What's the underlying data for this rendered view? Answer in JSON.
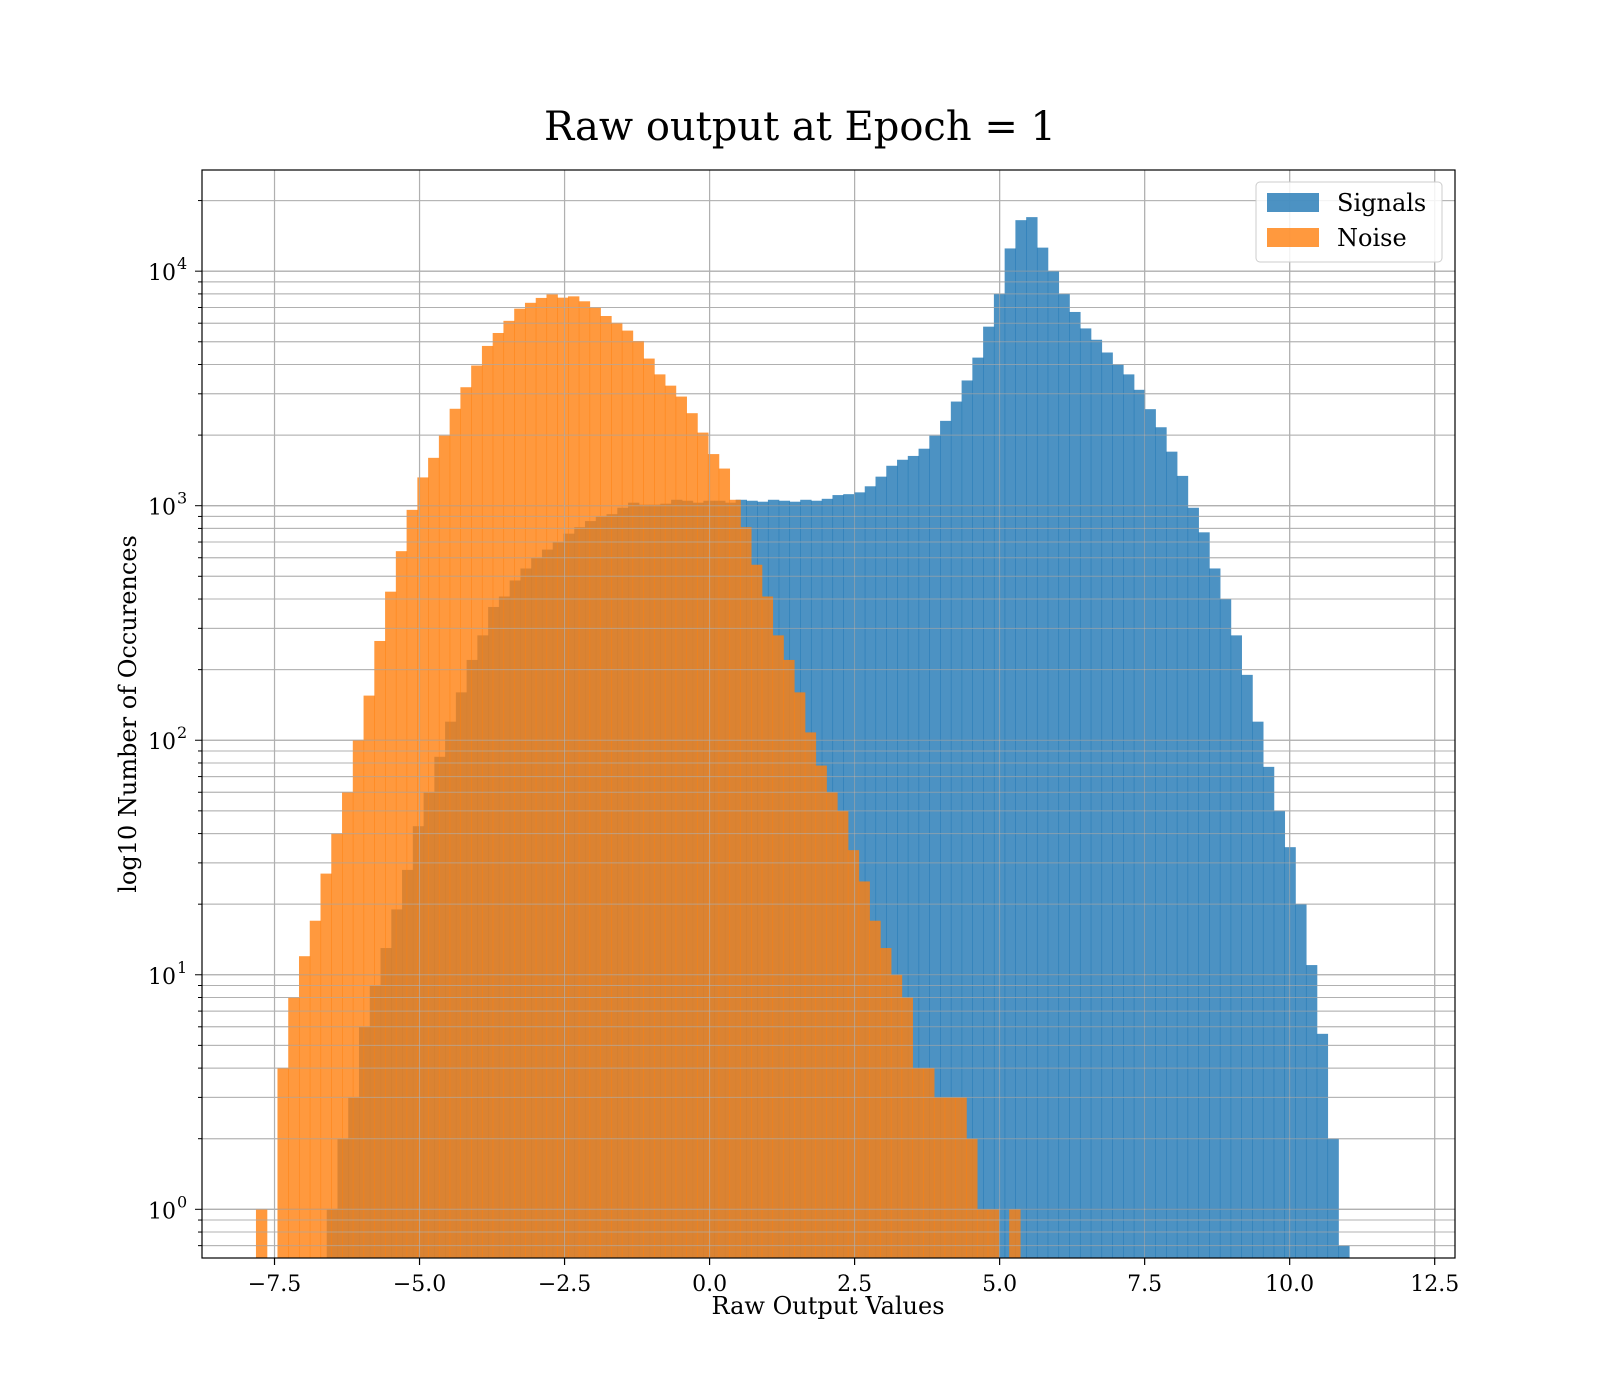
{
  "chart_data": {
    "type": "histogram",
    "title": "Raw output at Epoch = 1",
    "xlabel": "Raw Output Values",
    "ylabel": "log10 Number of Occurences",
    "xlim": [
      -8.75,
      12.85
    ],
    "ylim": [
      0.62,
      27000
    ],
    "yscale": "log",
    "grid": true,
    "legend_position": "top-right",
    "x_ticks": [
      -7.5,
      -5.0,
      -2.5,
      0.0,
      2.5,
      5.0,
      7.5,
      10.0,
      12.5
    ],
    "x_tick_labels": [
      "−7.5",
      "−5.0",
      "−2.5",
      "0.0",
      "2.5",
      "5.0",
      "7.5",
      "10.0",
      "12.5"
    ],
    "y_ticks": [
      1,
      10,
      100,
      1000,
      10000
    ],
    "y_tick_labels": [
      {
        "base": "10",
        "exp": "0"
      },
      {
        "base": "10",
        "exp": "1"
      },
      {
        "base": "10",
        "exp": "2"
      },
      {
        "base": "10",
        "exp": "3"
      },
      {
        "base": "10",
        "exp": "4"
      }
    ],
    "series": [
      {
        "name": "Signals",
        "color": "#1f77b4",
        "opacity": 0.8,
        "bin_start": -6.6,
        "bin_width": 0.1855,
        "counts": [
          1,
          2,
          3,
          6,
          9,
          13,
          19,
          28,
          43,
          60,
          85,
          120,
          160,
          220,
          280,
          370,
          410,
          480,
          540,
          600,
          650,
          700,
          760,
          810,
          860,
          900,
          920,
          980,
          1030,
          1010,
          1010,
          1020,
          1060,
          1050,
          1030,
          1050,
          1050,
          1030,
          1060,
          1050,
          1040,
          1060,
          1050,
          1040,
          1060,
          1050,
          1070,
          1110,
          1120,
          1140,
          1210,
          1330,
          1480,
          1570,
          1630,
          1750,
          1990,
          2300,
          2780,
          3420,
          4280,
          5800,
          8000,
          12500,
          16500,
          17000,
          12600,
          10000,
          8000,
          6700,
          5700,
          5100,
          4500,
          4000,
          3630,
          3120,
          2580,
          2160,
          1700,
          1340,
          980,
          770,
          540,
          400,
          280,
          190,
          120,
          77,
          50,
          35,
          20,
          11,
          5.6,
          2.0,
          0.7
        ]
      },
      {
        "name": "Noise",
        "color": "#ff7f0e",
        "opacity": 0.8,
        "bin_start": -7.82,
        "bin_width": 0.1855,
        "counts": [
          1,
          0,
          4,
          8,
          12,
          17,
          27,
          40,
          60,
          100,
          155,
          265,
          430,
          640,
          960,
          1320,
          1600,
          1990,
          2590,
          3200,
          3960,
          4800,
          5450,
          6140,
          6920,
          7330,
          7690,
          7960,
          7710,
          7810,
          7440,
          7000,
          6440,
          6020,
          5580,
          5040,
          4240,
          3630,
          3250,
          2920,
          2480,
          2050,
          1660,
          1440,
          1060,
          810,
          560,
          410,
          280,
          220,
          160,
          108,
          78,
          60,
          50,
          34,
          25,
          17,
          13,
          10,
          8,
          4,
          4,
          3,
          3,
          3,
          2,
          1,
          1,
          0,
          1
        ]
      }
    ]
  }
}
